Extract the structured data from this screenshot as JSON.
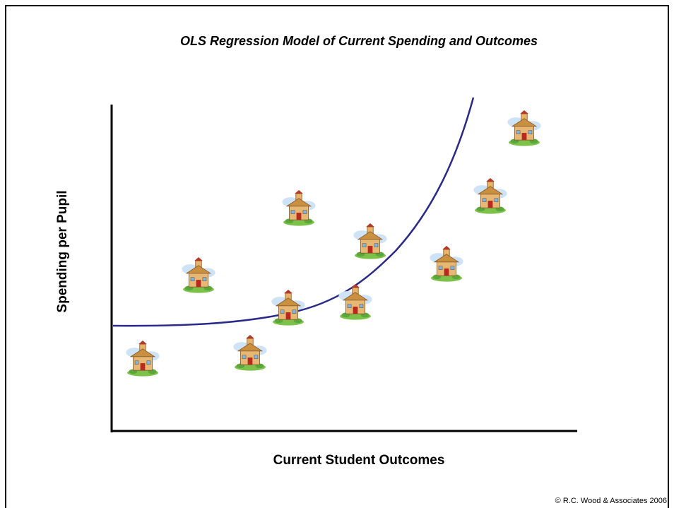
{
  "slide": {
    "title": "OLS Regression Model of Current Spending and Outcomes",
    "y_axis_label": "Spending per Pupil",
    "x_axis_label": "Current Student Outcomes",
    "footer": "© R.C. Wood & Associates 2006"
  }
}
